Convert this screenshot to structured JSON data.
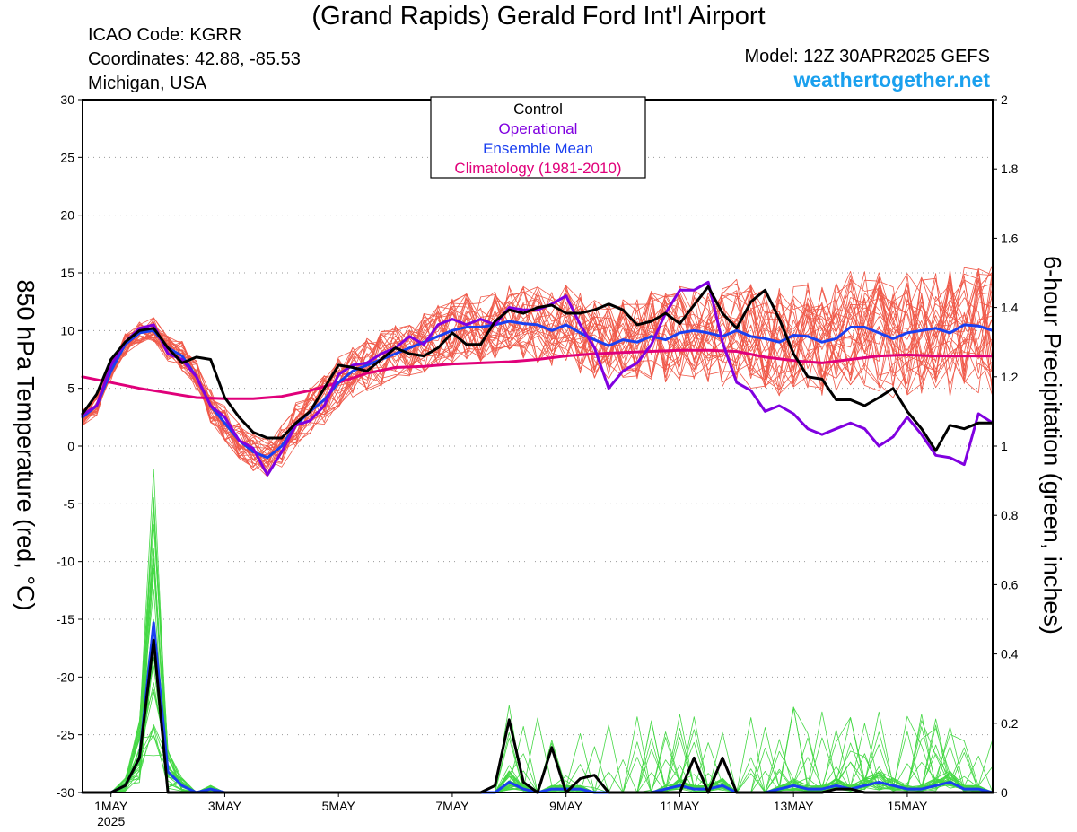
{
  "header": {
    "title": "(Grand Rapids) Gerald Ford Int'l Airport",
    "icao": "ICAO Code: KGRR",
    "coords": "Coordinates: 42.88, -85.53",
    "location": "Michigan, USA",
    "model": "Model: 12Z 30APR2025 GEFS",
    "site": "weathertogether.net"
  },
  "chart_data": {
    "type": "line",
    "ylabel_left": "850 hPa Temperature (red, °C)",
    "ylabel_right": "6-hour Precipitation (green, inches)",
    "ylim_left": [
      -30,
      30
    ],
    "ylim_right": [
      0,
      2
    ],
    "yticks_left": [
      "30",
      "25",
      "20",
      "15",
      "10",
      "5",
      "0",
      "-5",
      "-10",
      "-15",
      "-20",
      "-25",
      "-30"
    ],
    "yticks_right": [
      "2",
      "1.8",
      "1.6",
      "1.4",
      "1.2",
      "1",
      "0.8",
      "0.6",
      "0.4",
      "0.2",
      "0"
    ],
    "xticks": [
      {
        "day": 1,
        "label": "1MAY",
        "sub": "2025"
      },
      {
        "day": 3,
        "label": "3MAY",
        "sub": ""
      },
      {
        "day": 5,
        "label": "5MAY",
        "sub": ""
      },
      {
        "day": 7,
        "label": "7MAY",
        "sub": ""
      },
      {
        "day": 9,
        "label": "9MAY",
        "sub": ""
      },
      {
        "day": 11,
        "label": "11MAY",
        "sub": ""
      },
      {
        "day": 13,
        "label": "13MAY",
        "sub": ""
      },
      {
        "day": 15,
        "label": "15MAY",
        "sub": ""
      }
    ],
    "legend": [
      {
        "label": "Control",
        "color": "#000000"
      },
      {
        "label": "Operational",
        "color": "#8000e0"
      },
      {
        "label": "Ensemble Mean",
        "color": "#1a3ff0"
      },
      {
        "label": "Climatology (1981-2010)",
        "color": "#e0007a"
      }
    ],
    "colors": {
      "members": "#f05a4a",
      "precip_members": "#45d845",
      "control": "#000000",
      "operational": "#8000e0",
      "mean": "#1a3ff0",
      "climatology": "#e0007a"
    },
    "series": [
      {
        "role": "control",
        "kind": "temperature",
        "x": [
          0.5,
          0.75,
          1.0,
          1.25,
          1.5,
          1.75,
          2.0,
          2.25,
          2.5,
          2.75,
          3.0,
          3.25,
          3.5,
          3.75,
          4.0,
          4.25,
          4.5,
          4.75,
          5.0,
          5.25,
          5.5,
          5.75,
          6.0,
          6.25,
          6.5,
          6.75,
          7.0,
          7.25,
          7.5,
          7.75,
          8.0,
          8.25,
          8.5,
          8.75,
          9.0,
          9.25,
          9.5,
          9.75,
          10.0,
          10.25,
          10.5,
          10.75,
          11.0,
          11.25,
          11.5,
          11.75,
          12.0,
          12.25,
          12.5,
          12.75,
          13.0,
          13.25,
          13.5,
          13.75,
          14.0,
          14.25,
          14.5,
          14.75,
          15.0,
          15.25,
          15.5,
          15.75,
          16.0,
          16.25,
          16.5
        ],
        "y": [
          2.8,
          4.5,
          7.5,
          9.0,
          10.0,
          10.2,
          8.5,
          7.2,
          7.7,
          7.5,
          4.2,
          2.5,
          1.2,
          0.7,
          0.7,
          2.0,
          3.0,
          5.0,
          7.0,
          6.8,
          6.5,
          7.5,
          8.5,
          8.0,
          7.8,
          8.5,
          9.8,
          8.8,
          8.8,
          10.8,
          11.8,
          11.5,
          12.0,
          12.2,
          11.5,
          11.5,
          11.8,
          12.3,
          11.8,
          10.5,
          10.8,
          11.5,
          10.6,
          12.2,
          13.8,
          11.5,
          10.2,
          12.5,
          13.5,
          11.0,
          8.0,
          6.0,
          5.8,
          4.0,
          4.0,
          3.5,
          4.2,
          5.0,
          3.0,
          1.5,
          -0.4,
          1.8,
          1.5,
          2.0,
          2.0
        ]
      },
      {
        "role": "operational",
        "kind": "temperature",
        "x": [
          0.5,
          0.75,
          1.0,
          1.25,
          1.5,
          1.75,
          2.0,
          2.25,
          2.5,
          2.75,
          3.0,
          3.25,
          3.5,
          3.75,
          4.0,
          4.25,
          4.5,
          4.75,
          5.0,
          5.25,
          5.5,
          5.75,
          6.0,
          6.25,
          6.5,
          6.75,
          7.0,
          7.25,
          7.5,
          7.75,
          8.0,
          8.25,
          8.5,
          8.75,
          9.0,
          9.25,
          9.5,
          9.75,
          10.0,
          10.25,
          10.5,
          10.75,
          11.0,
          11.25,
          11.5,
          11.75,
          12.0,
          12.25,
          12.5,
          12.75,
          13.0,
          13.25,
          13.5,
          13.75,
          14.0,
          14.25,
          14.5,
          14.75,
          15.0,
          15.25,
          15.5,
          15.75,
          16.0,
          16.25,
          16.5
        ],
        "y": [
          2.7,
          3.5,
          7.0,
          9.0,
          10.2,
          10.5,
          8.0,
          7.5,
          6.0,
          3.5,
          2.5,
          0.5,
          -0.2,
          -2.5,
          -0.5,
          1.8,
          2.2,
          3.5,
          6.2,
          7.0,
          7.2,
          8.0,
          8.5,
          9.5,
          8.8,
          10.5,
          11.0,
          10.5,
          11.0,
          10.5,
          12.0,
          11.8,
          11.8,
          12.3,
          13.0,
          10.5,
          8.5,
          5.0,
          6.5,
          7.2,
          8.8,
          11.5,
          13.5,
          13.5,
          14.2,
          9.0,
          5.5,
          4.8,
          3.0,
          3.5,
          2.8,
          1.5,
          1.0,
          1.5,
          2.0,
          1.5,
          0.0,
          0.8,
          2.5,
          1.0,
          -0.8,
          -1.0,
          -1.6,
          2.8,
          2.0
        ]
      },
      {
        "role": "mean",
        "kind": "temperature",
        "x": [
          0.5,
          0.75,
          1.0,
          1.25,
          1.5,
          1.75,
          2.0,
          2.25,
          2.5,
          2.75,
          3.0,
          3.25,
          3.5,
          3.75,
          4.0,
          4.25,
          4.5,
          4.75,
          5.0,
          5.25,
          5.5,
          5.75,
          6.0,
          6.25,
          6.5,
          6.75,
          7.0,
          7.25,
          7.5,
          7.75,
          8.0,
          8.25,
          8.5,
          8.75,
          9.0,
          9.25,
          9.5,
          9.75,
          10.0,
          10.25,
          10.5,
          10.75,
          11.0,
          11.25,
          11.5,
          11.75,
          12.0,
          12.25,
          12.5,
          12.75,
          13.0,
          13.25,
          13.5,
          13.75,
          14.0,
          14.25,
          14.5,
          14.75,
          15.0,
          15.25,
          15.5,
          15.75,
          16.0,
          16.25,
          16.5
        ],
        "y": [
          2.5,
          3.5,
          6.5,
          8.8,
          9.8,
          10.0,
          8.5,
          7.8,
          6.0,
          3.5,
          2.0,
          0.5,
          -0.5,
          -1.0,
          0.0,
          1.8,
          3.0,
          4.0,
          5.5,
          6.5,
          7.0,
          7.5,
          8.0,
          8.5,
          9.0,
          9.5,
          10.0,
          10.3,
          10.3,
          10.5,
          10.8,
          10.6,
          10.5,
          10.0,
          10.5,
          9.8,
          9.2,
          8.7,
          9.2,
          9.0,
          9.5,
          9.2,
          9.8,
          10.0,
          9.8,
          9.5,
          10.0,
          9.5,
          9.3,
          9.0,
          9.6,
          9.5,
          9.0,
          9.3,
          10.3,
          10.3,
          9.8,
          9.3,
          9.8,
          10.0,
          10.2,
          9.8,
          10.5,
          10.4,
          10.0
        ]
      },
      {
        "role": "climatology",
        "kind": "temperature",
        "x": [
          0.5,
          1.0,
          1.5,
          2.0,
          2.5,
          3.0,
          3.5,
          4.0,
          4.5,
          5.0,
          5.5,
          6.0,
          6.5,
          7.0,
          7.5,
          8.0,
          8.5,
          9.0,
          9.5,
          10.0,
          10.5,
          11.0,
          11.5,
          12.0,
          12.5,
          13.0,
          13.5,
          14.0,
          14.5,
          15.0,
          15.5,
          16.0,
          16.5
        ],
        "y": [
          6.0,
          5.5,
          5.0,
          4.6,
          4.2,
          4.1,
          4.1,
          4.3,
          4.8,
          5.5,
          6.3,
          6.8,
          6.9,
          7.1,
          7.2,
          7.3,
          7.5,
          7.8,
          8.0,
          8.1,
          8.2,
          8.3,
          8.3,
          8.2,
          7.7,
          7.4,
          7.2,
          7.5,
          7.8,
          7.9,
          7.8,
          7.8,
          7.8
        ]
      },
      {
        "role": "control",
        "kind": "precipitation",
        "x": [
          0.5,
          0.75,
          1.0,
          1.25,
          1.5,
          1.75,
          2.0,
          2.25,
          2.5,
          2.75,
          3.0,
          3.25,
          3.5,
          3.75,
          4.0,
          4.25,
          4.5,
          4.75,
          5.0,
          5.25,
          5.5,
          5.75,
          6.0,
          6.25,
          6.5,
          6.75,
          7.0,
          7.25,
          7.5,
          7.75,
          8.0,
          8.25,
          8.5,
          8.75,
          9.0,
          9.25,
          9.5,
          9.75,
          10.0,
          10.25,
          10.5,
          10.75,
          11.0,
          11.25,
          11.5,
          11.75,
          12.0,
          12.25,
          12.5,
          12.75,
          13.0,
          13.25,
          13.5,
          13.75,
          14.0,
          14.25,
          14.5,
          14.75,
          15.0,
          15.25,
          15.5,
          15.75,
          16.0,
          16.25,
          16.5
        ],
        "y": [
          0,
          0,
          0,
          0.02,
          0.1,
          0.44,
          0.0,
          0,
          0,
          0,
          0,
          0,
          0,
          0,
          0,
          0,
          0,
          0,
          0,
          0,
          0,
          0,
          0,
          0,
          0,
          0,
          0,
          0,
          0,
          0.02,
          0.21,
          0.03,
          0.0,
          0.13,
          0.0,
          0.04,
          0.05,
          0,
          0,
          0,
          0,
          0,
          0,
          0.1,
          0.0,
          0.1,
          0,
          0,
          0,
          0,
          0,
          0,
          0,
          0.01,
          0.01,
          0,
          0,
          0,
          0,
          0,
          0,
          0,
          0,
          0,
          0
        ]
      },
      {
        "role": "mean",
        "kind": "precipitation",
        "x": [
          0.5,
          0.75,
          1.0,
          1.25,
          1.5,
          1.75,
          2.0,
          2.25,
          2.5,
          2.75,
          3.0,
          3.25,
          3.5,
          3.75,
          4.0,
          4.25,
          4.5,
          4.75,
          5.0,
          5.25,
          5.5,
          5.75,
          6.0,
          6.25,
          6.5,
          6.75,
          7.0,
          7.25,
          7.5,
          7.75,
          8.0,
          8.25,
          8.5,
          8.75,
          9.0,
          9.25,
          9.5,
          9.75,
          10.0,
          10.25,
          10.5,
          10.75,
          11.0,
          11.25,
          11.5,
          11.75,
          12.0,
          12.25,
          12.5,
          12.75,
          13.0,
          13.25,
          13.5,
          13.75,
          14.0,
          14.25,
          14.5,
          14.75,
          15.0,
          15.25,
          15.5,
          15.75,
          16.0,
          16.25,
          16.5
        ],
        "y": [
          0,
          0,
          0,
          0.02,
          0.1,
          0.49,
          0.06,
          0.02,
          0.0,
          0.01,
          0.0,
          0,
          0,
          0,
          0,
          0,
          0,
          0,
          0,
          0,
          0,
          0,
          0,
          0,
          0,
          0,
          0,
          0,
          0,
          0.0,
          0.03,
          0.01,
          0.0,
          0.01,
          0.01,
          0.01,
          0.0,
          0,
          0,
          0,
          0.0,
          0.01,
          0.02,
          0.01,
          0.01,
          0.02,
          0.0,
          0.0,
          0.0,
          0.01,
          0.02,
          0.01,
          0.01,
          0.02,
          0.01,
          0.02,
          0.03,
          0.02,
          0.01,
          0.01,
          0.02,
          0.03,
          0.01,
          0.01,
          0.0
        ]
      }
    ]
  }
}
